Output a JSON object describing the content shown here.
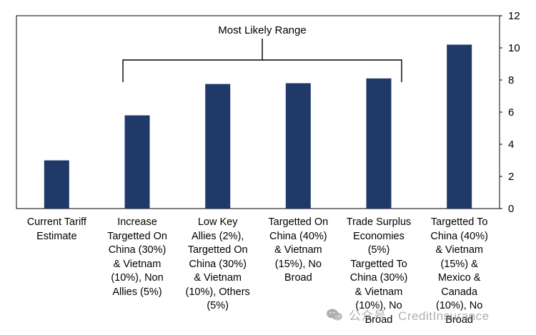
{
  "chart_data": {
    "type": "bar",
    "categories": [
      "Current Tariff Estimate",
      "Increase Targetted On China (30%) & Vietnam (10%), Non Allies (5%)",
      "Low Key Allies (2%), Targetted On China (30%) & Vietnam (10%), Others (5%)",
      "Targetted On China (40%) & Vietnam (15%), No Broad",
      "Trade Surplus Economies (5%) Targetted To China (30%) & Vietnam (10%), No Broad",
      "Targetted To China (40%) & Vietnam (15%) & Mexico & Canada (10%), No Broad"
    ],
    "category_lines": [
      [
        "Current Tariff",
        "Estimate"
      ],
      [
        "Increase",
        "Targetted On",
        "China (30%)",
        "& Vietnam",
        "(10%), Non",
        "Allies (5%)"
      ],
      [
        "Low Key",
        "Allies (2%),",
        "Targetted On",
        "China (30%)",
        "& Vietnam",
        "(10%), Others",
        "(5%)"
      ],
      [
        "Targetted On",
        "China (40%)",
        "& Vietnam",
        "(15%), No",
        "Broad"
      ],
      [
        "Trade Surplus",
        "Economies",
        "(5%)",
        "Targetted To",
        "China (30%)",
        "& Vietnam",
        "(10%), No",
        "Broad"
      ],
      [
        "Targetted To",
        "China (40%)",
        "& Vietnam",
        "(15%) &",
        "Mexico &",
        "Canada",
        "(10%), No",
        "Broad"
      ]
    ],
    "values": [
      3.0,
      5.8,
      7.75,
      7.8,
      8.1,
      10.2
    ],
    "ylim": [
      0,
      12
    ],
    "yticks": [
      "0",
      "2",
      "4",
      "6",
      "8",
      "10",
      "12"
    ],
    "y_axis_side": "right",
    "grid": false,
    "bar_color": "#1f3a68",
    "annotation": {
      "text": "Most Likely Range",
      "from_category": 1,
      "to_category": 4
    }
  },
  "watermark": {
    "text": "公众号 · CreditInsurance",
    "icon": "wechat-icon"
  }
}
